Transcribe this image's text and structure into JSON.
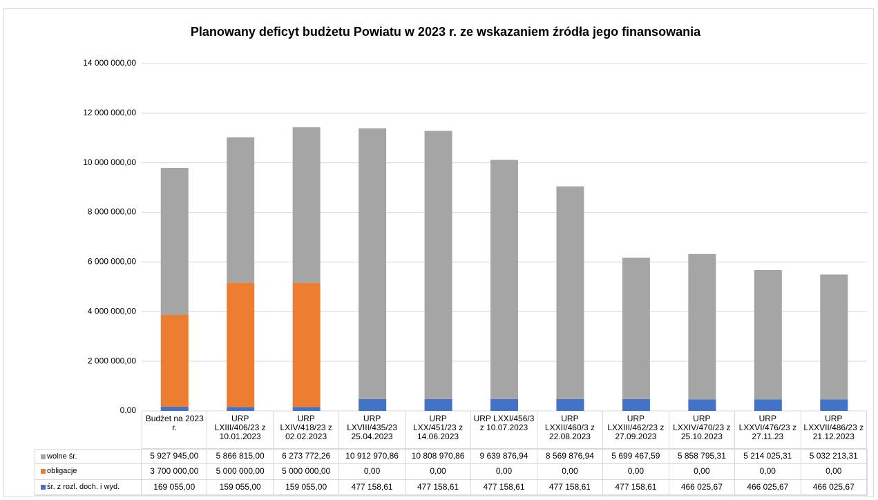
{
  "chart_data": {
    "type": "bar",
    "stacked": true,
    "title": "Planowany deficyt budżetu Powiatu w 2023 r. ze wskazaniem źródła jego finansowania",
    "categories": [
      "Budżet na 2023 r.",
      "URP LXIII/406/23 z 10.01.2023",
      "URP LXIV/418/23 z 02.02.2023",
      "URP LXVIII/435/23 25.04.2023",
      "URP LXX/451/23 z 14.06.2023",
      "URP LXXI/456/3 z 10.07.2023",
      "URP LXXII/460/3 z 22.08.2023",
      "URP LXXIII/462/23 z 27.09.2023",
      "URP LXXIV/470/23 z 25.10.2023",
      "URP LXXVI/476/23 z 27.11.23",
      "URP LXXVII/486/23 z 21.12.2023"
    ],
    "series": [
      {
        "name": "wolne śr.",
        "color": "#a5a5a5",
        "values": [
          5927945.0,
          5866815.0,
          6273772.26,
          10912970.86,
          10808970.86,
          9639876.94,
          8569876.94,
          5699467.59,
          5858795.31,
          5214025.31,
          5032213.31
        ],
        "value_labels": [
          "5 927 945,00",
          "5 866 815,00",
          "6 273 772,26",
          "10 912 970,86",
          "10 808 970,86",
          "9 639 876,94",
          "8 569 876,94",
          "5 699 467,59",
          "5 858 795,31",
          "5 214 025,31",
          "5 032 213,31"
        ]
      },
      {
        "name": "obligacje",
        "color": "#ed7d31",
        "values": [
          3700000.0,
          5000000.0,
          5000000.0,
          0,
          0,
          0,
          0,
          0,
          0,
          0,
          0
        ],
        "value_labels": [
          "3 700 000,00",
          "5 000 000,00",
          "5 000 000,00",
          "0,00",
          "0,00",
          "0,00",
          "0,00",
          "0,00",
          "0,00",
          "0,00",
          "0,00"
        ]
      },
      {
        "name": "śr. z rozl. doch. i wyd.",
        "color": "#4472c4",
        "values": [
          169055.0,
          159055.0,
          159055.0,
          477158.61,
          477158.61,
          477158.61,
          477158.61,
          477158.61,
          466025.67,
          466025.67,
          466025.67
        ],
        "value_labels": [
          "169 055,00",
          "159 055,00",
          "159 055,00",
          "477 158,61",
          "477 158,61",
          "477 158,61",
          "477 158,61",
          "477 158,61",
          "466 025,67",
          "466 025,67",
          "466 025,67"
        ]
      }
    ],
    "ylim": [
      0,
      14000000
    ],
    "yticks": [
      {
        "value": 0,
        "label": "0,00"
      },
      {
        "value": 2000000,
        "label": "2 000 000,00"
      },
      {
        "value": 4000000,
        "label": "4 000 000,00"
      },
      {
        "value": 6000000,
        "label": "6 000 000,00"
      },
      {
        "value": 8000000,
        "label": "8 000 000,00"
      },
      {
        "value": 10000000,
        "label": "10 000 000,00"
      },
      {
        "value": 12000000,
        "label": "12 000 000,00"
      },
      {
        "value": 14000000,
        "label": "14 000 000,00"
      }
    ],
    "grid": true
  }
}
